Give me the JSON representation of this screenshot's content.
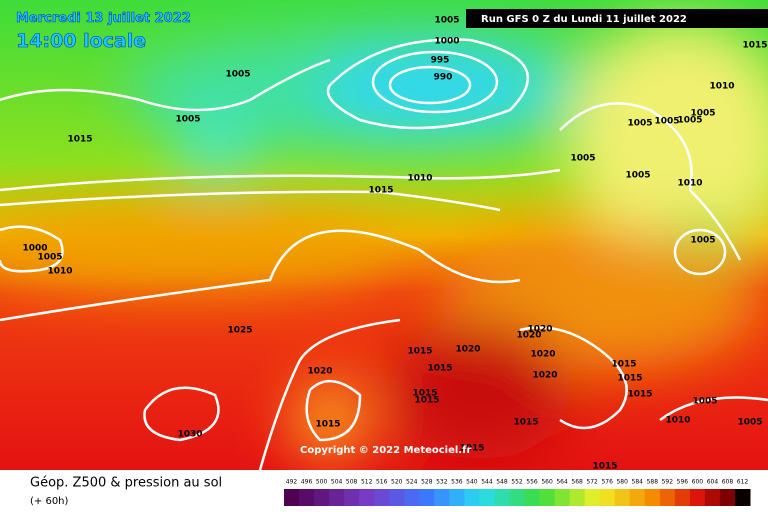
{
  "header": {
    "title": "Mercredi 13 juillet 2022",
    "time": "14:00 locale",
    "run": "Run GFS 0 Z du Lundi 11 juillet 2022"
  },
  "map": {
    "isobar_labels": [
      1005,
      1000,
      995,
      990,
      1005,
      1005,
      1015,
      1010,
      1015,
      1000,
      1005,
      1010,
      1025,
      1020,
      1030,
      1015,
      1015,
      1020,
      1015,
      1015,
      1015,
      1020,
      1020,
      1020,
      1020,
      1015,
      1015,
      1015,
      1015,
      1005,
      1010,
      1005,
      1015,
      1015,
      1005,
      1005,
      1005,
      1005,
      1005,
      1005,
      1010,
      1005,
      1010,
      1015
    ],
    "copyright": "Copyright © 2022 Meteociel.fr"
  },
  "legend": {
    "title": "Géop. Z500 & pression au sol",
    "subtitle": "(+ 60h)",
    "scale": [
      492,
      496,
      500,
      504,
      508,
      512,
      516,
      520,
      524,
      528,
      532,
      536,
      540,
      544,
      548,
      552,
      556,
      560,
      564,
      568,
      572,
      576,
      580,
      584,
      588,
      592,
      596,
      600,
      604,
      608,
      612
    ]
  }
}
